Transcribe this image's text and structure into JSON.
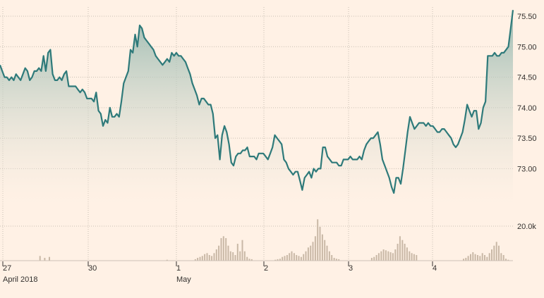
{
  "chart_data": {
    "type": "line",
    "grid": true,
    "price_axis": {
      "ticks": [
        73.0,
        73.5,
        74.0,
        74.5,
        75.0,
        75.5
      ],
      "tick_labels": [
        "73.00",
        "73.50",
        "74.00",
        "74.50",
        "75.00",
        "75.50"
      ],
      "range": [
        72.3,
        75.65
      ],
      "position": "right"
    },
    "volume_axis": {
      "ticks": [
        20000
      ],
      "tick_labels": [
        "20.0k"
      ],
      "range": [
        0,
        30000
      ],
      "position": "right"
    },
    "day_labels": [
      {
        "day": "27",
        "month": "April 2018"
      },
      {
        "day": "30",
        "month": ""
      },
      {
        "day": "1",
        "month": "May"
      },
      {
        "day": "2",
        "month": ""
      },
      {
        "day": "3",
        "month": ""
      },
      {
        "day": "4",
        "month": ""
      }
    ],
    "series": [
      {
        "values": [
          74.7,
          74.6,
          74.5,
          74.5,
          74.45,
          74.5,
          74.45,
          74.55,
          74.5,
          74.45,
          74.55,
          74.65,
          74.6,
          74.45,
          74.5,
          74.6,
          74.6,
          74.65,
          74.6,
          74.85,
          74.6,
          74.9,
          74.95,
          74.55,
          74.45,
          74.45,
          74.5,
          74.45,
          74.55,
          74.6,
          74.35,
          74.35,
          74.35,
          74.35,
          74.3,
          74.25,
          74.3,
          74.25,
          74.15,
          74.15,
          74.15,
          74.1,
          74.25,
          73.95,
          73.9,
          73.7,
          73.8,
          73.75,
          74.0,
          73.85,
          73.85,
          73.9,
          73.85,
          74.1,
          74.4,
          74.5,
          74.6,
          74.95,
          74.9,
          75.2,
          75.0,
          75.35,
          75.3,
          75.15,
          75.1,
          75.05,
          75.0,
          74.95,
          74.85,
          74.8,
          74.75,
          74.7,
          74.75,
          74.8,
          74.75,
          74.9,
          74.85,
          74.9,
          74.85,
          74.85,
          74.8,
          74.75,
          74.65,
          74.55,
          74.4,
          74.3,
          74.2,
          74.05,
          74.15,
          74.15,
          74.1,
          74.05,
          74.05,
          73.9,
          73.5,
          73.55,
          73.15,
          73.55,
          73.7,
          73.6,
          73.4,
          73.1,
          73.05,
          73.2,
          73.25,
          73.25,
          73.3,
          73.3,
          73.35,
          73.2,
          73.2,
          73.2,
          73.15,
          73.25,
          73.25,
          73.25,
          73.2,
          73.15,
          73.25,
          73.35,
          73.55,
          73.5,
          73.45,
          73.4,
          73.15,
          73.1,
          73.0,
          72.95,
          72.9,
          72.95,
          72.95,
          72.8,
          72.65,
          72.85,
          72.9,
          72.95,
          72.85,
          73.0,
          72.95,
          73.0,
          73.0,
          73.35,
          73.35,
          73.2,
          73.15,
          73.1,
          73.1,
          73.1,
          73.05,
          73.05,
          73.15,
          73.15,
          73.15,
          73.2,
          73.15,
          73.15,
          73.15,
          73.2,
          73.15,
          73.3,
          73.4,
          73.45,
          73.5,
          73.5,
          73.55,
          73.6,
          73.4,
          73.15,
          73.05,
          72.95,
          72.85,
          72.7,
          72.6,
          72.85,
          72.85,
          72.75,
          73.0,
          73.3,
          73.6,
          73.85,
          73.75,
          73.65,
          73.7,
          73.75,
          73.75,
          73.75,
          73.7,
          73.75,
          73.7,
          73.7,
          73.65,
          73.6,
          73.6,
          73.65,
          73.65,
          73.6,
          73.55,
          73.5,
          73.4,
          73.35,
          73.4,
          73.5,
          73.6,
          73.8,
          74.05,
          73.95,
          73.85,
          73.95,
          73.95,
          73.65,
          73.75,
          74.0,
          74.1,
          74.85,
          74.85,
          74.85,
          74.9,
          74.85,
          74.85,
          74.9,
          74.9,
          74.95,
          75.0,
          75.3,
          75.6
        ]
      }
    ],
    "volume": [
      0,
      0,
      0,
      0,
      0,
      0,
      0,
      0,
      0,
      0,
      0,
      0,
      0,
      0,
      0,
      0,
      0,
      2500,
      0,
      1500,
      0,
      2000,
      0,
      0,
      0,
      0,
      0,
      0,
      0,
      0,
      0,
      0,
      0,
      0,
      0,
      0,
      0,
      0,
      0,
      0,
      0,
      0,
      0,
      0,
      0,
      0,
      0,
      0,
      0,
      0,
      0,
      0,
      0,
      0,
      0,
      0,
      0,
      0,
      0,
      0,
      0,
      0,
      0,
      0,
      0,
      0,
      0,
      0,
      0,
      0,
      0,
      500,
      0,
      0,
      0,
      0,
      0,
      0,
      0,
      0,
      0,
      0,
      0,
      800,
      1500,
      2000,
      2500,
      3500,
      4000,
      3000,
      2500,
      4000,
      6000,
      8000,
      12000,
      13000,
      12000,
      8000,
      5000,
      4500,
      3000,
      9000,
      5000,
      11000,
      5000,
      2000,
      1000,
      800,
      0,
      0,
      0,
      0,
      0,
      0,
      0,
      0,
      0,
      500,
      800,
      1000,
      2000,
      2500,
      3000,
      4000,
      5000,
      4000,
      3000,
      2500,
      2000,
      3500,
      5000,
      7000,
      8000,
      10000,
      13000,
      22000,
      18000,
      14000,
      11000,
      8000,
      5000,
      3000,
      1500,
      1000,
      800,
      0,
      0,
      0,
      0,
      0,
      0,
      0,
      0,
      0,
      0,
      0,
      0,
      0,
      1500,
      2000,
      3000,
      4000,
      5000,
      6000,
      5500,
      5000,
      4500,
      4000,
      6000,
      9000,
      13000,
      11000,
      9000,
      7000,
      5000,
      4000,
      3500,
      3000,
      0,
      0,
      0,
      0,
      0,
      0,
      0,
      0,
      0,
      0,
      0,
      0,
      0,
      0,
      0,
      0,
      0,
      0,
      0,
      1000,
      1500,
      2500,
      3500,
      4500,
      3500,
      3000,
      2500,
      4000,
      3000,
      2000,
      4000,
      6000,
      8000,
      10000,
      8000,
      4000,
      3000,
      1000,
      500,
      0,
      0
    ]
  }
}
